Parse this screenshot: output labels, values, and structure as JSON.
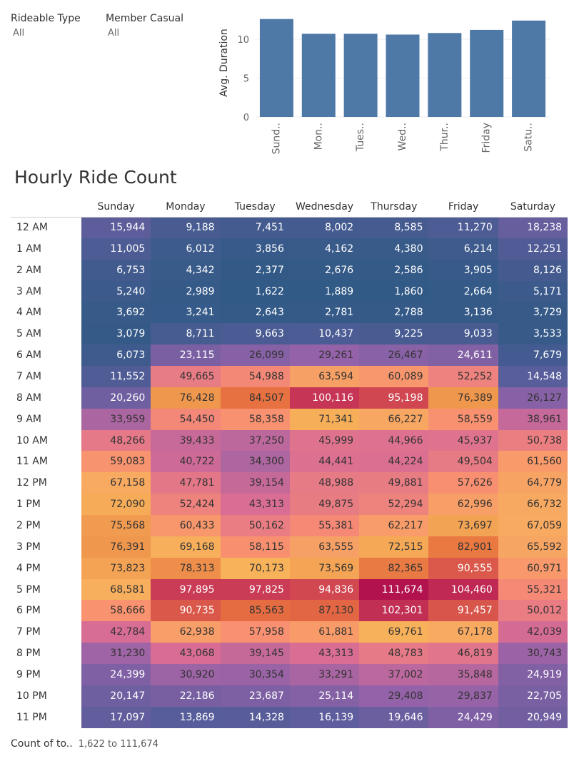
{
  "filters": {
    "rideable": {
      "label": "Rideable Type",
      "value": "All"
    },
    "member": {
      "label": "Member Casual",
      "value": "All"
    }
  },
  "colors": {
    "bar": "#4e79a7",
    "gridline": "#ececec",
    "heat_scale": [
      "#315a86",
      "#5b5d9c",
      "#9362a8",
      "#d86c94",
      "#f88c73",
      "#f7b35a",
      "#e8723f",
      "#ca3c56",
      "#b2134f"
    ]
  },
  "title": "Hourly Ride Count",
  "legend": {
    "title": "Count of to..",
    "range": "1,622 to 111,674"
  },
  "chart_data": [
    {
      "type": "bar",
      "categories": [
        "Sund..",
        "Mon..",
        "Tues..",
        "Wed..",
        "Thur..",
        "Friday",
        "Satu.."
      ],
      "values": [
        12.6,
        10.7,
        10.7,
        10.6,
        10.8,
        11.2,
        12.4
      ],
      "ylabel": "Avg. Duration",
      "yticks": [
        0,
        5,
        10
      ],
      "ylim": [
        0,
        13
      ],
      "xlabel": "",
      "title": ""
    },
    {
      "type": "heatmap",
      "title": "Hourly Ride Count",
      "columns": [
        "Sunday",
        "Monday",
        "Tuesday",
        "Wednesday",
        "Thursday",
        "Friday",
        "Saturday"
      ],
      "rows": [
        "12 AM",
        "1 AM",
        "2 AM",
        "3 AM",
        "4 AM",
        "5 AM",
        "6 AM",
        "7 AM",
        "8 AM",
        "9 AM",
        "10 AM",
        "11 AM",
        "12 PM",
        "1 PM",
        "2 PM",
        "3 PM",
        "4 PM",
        "5 PM",
        "6 PM",
        "7 PM",
        "8 PM",
        "9 PM",
        "10 PM",
        "11 PM"
      ],
      "values": [
        [
          15944,
          9188,
          7451,
          8002,
          8585,
          11270,
          18238
        ],
        [
          11005,
          6012,
          3856,
          4162,
          4380,
          6214,
          12251
        ],
        [
          6753,
          4342,
          2377,
          2676,
          2586,
          3905,
          8126
        ],
        [
          5240,
          2989,
          1622,
          1889,
          1860,
          2664,
          5171
        ],
        [
          3692,
          3241,
          2643,
          2781,
          2788,
          3136,
          3729
        ],
        [
          3079,
          8711,
          9663,
          10437,
          9225,
          9033,
          3533
        ],
        [
          6073,
          23115,
          26099,
          29261,
          26467,
          24611,
          7679
        ],
        [
          11552,
          49665,
          54988,
          63594,
          60089,
          52252,
          14548
        ],
        [
          20260,
          76428,
          84507,
          100116,
          95198,
          76389,
          26127
        ],
        [
          33959,
          54450,
          58358,
          71341,
          66227,
          58559,
          38961
        ],
        [
          48266,
          39433,
          37250,
          45999,
          44966,
          45937,
          50738
        ],
        [
          59083,
          40722,
          34300,
          44441,
          44224,
          49504,
          61560
        ],
        [
          67158,
          47781,
          39154,
          48988,
          49881,
          57626,
          64779
        ],
        [
          72090,
          52424,
          43313,
          49875,
          52294,
          62996,
          66732
        ],
        [
          75568,
          60433,
          50162,
          55381,
          62217,
          73697,
          67059
        ],
        [
          76391,
          69168,
          58115,
          63555,
          72515,
          82901,
          65592
        ],
        [
          73823,
          78313,
          70173,
          73569,
          82365,
          90555,
          60971
        ],
        [
          68581,
          97895,
          97825,
          94836,
          111674,
          104460,
          55321
        ],
        [
          58666,
          90735,
          85563,
          87130,
          102301,
          91457,
          50012
        ],
        [
          42784,
          62938,
          57958,
          61881,
          69761,
          67178,
          42039
        ],
        [
          31230,
          43068,
          39145,
          43313,
          48783,
          46819,
          30743
        ],
        [
          24399,
          30920,
          30354,
          33291,
          37002,
          35848,
          24919
        ],
        [
          20147,
          22186,
          23687,
          25114,
          29408,
          29837,
          22705
        ],
        [
          17097,
          13869,
          14328,
          16139,
          19646,
          24429,
          20949
        ]
      ],
      "min": 1622,
      "max": 111674
    }
  ]
}
